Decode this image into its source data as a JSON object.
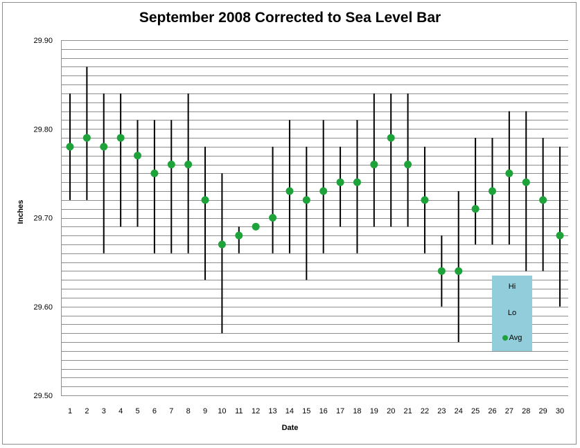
{
  "chart_data": {
    "type": "scatter",
    "title": "September 2008 Corrected to Sea Level Bar",
    "xlabel": "Date",
    "ylabel": "Inches",
    "ylim": [
      29.5,
      29.9
    ],
    "y_ticks": [
      "29.50",
      "29.60",
      "29.70",
      "29.80",
      "29.90"
    ],
    "x": [
      1,
      2,
      3,
      4,
      5,
      6,
      7,
      8,
      9,
      10,
      11,
      12,
      13,
      14,
      15,
      16,
      17,
      18,
      19,
      20,
      21,
      22,
      23,
      24,
      25,
      26,
      27,
      28,
      29,
      30
    ],
    "series": [
      {
        "name": "Hi",
        "values": [
          29.84,
          29.87,
          29.84,
          29.84,
          29.81,
          29.81,
          29.81,
          29.84,
          29.78,
          29.75,
          29.69,
          29.69,
          29.78,
          29.81,
          29.78,
          29.81,
          29.78,
          29.81,
          29.84,
          29.84,
          29.84,
          29.78,
          29.68,
          29.73,
          29.79,
          29.79,
          29.82,
          29.82,
          29.79,
          29.78
        ]
      },
      {
        "name": "Lo",
        "values": [
          29.72,
          29.72,
          29.66,
          29.69,
          29.69,
          29.66,
          29.66,
          29.66,
          29.63,
          29.57,
          29.66,
          29.69,
          29.66,
          29.66,
          29.63,
          29.66,
          29.69,
          29.66,
          29.69,
          29.69,
          29.69,
          29.66,
          29.6,
          29.56,
          29.67,
          29.67,
          29.67,
          29.64,
          29.64,
          29.6
        ]
      },
      {
        "name": "Avg",
        "values": [
          29.78,
          29.79,
          29.78,
          29.79,
          29.77,
          29.75,
          29.76,
          29.76,
          29.72,
          29.67,
          29.68,
          29.69,
          29.7,
          29.73,
          29.72,
          29.73,
          29.74,
          29.74,
          29.76,
          29.79,
          29.76,
          29.72,
          29.64,
          29.64,
          29.71,
          29.73,
          29.75,
          29.74,
          29.72,
          29.68
        ]
      }
    ],
    "grid": true,
    "legend_position": "bottom-right",
    "colors": {
      "range_line": "#000000",
      "avg_marker": "#1ea33a",
      "grid": "#8c8c8c",
      "legend_bg": "#92cddc"
    }
  },
  "legend": {
    "hi": "Hi",
    "lo": "Lo",
    "avg": "Avg"
  }
}
